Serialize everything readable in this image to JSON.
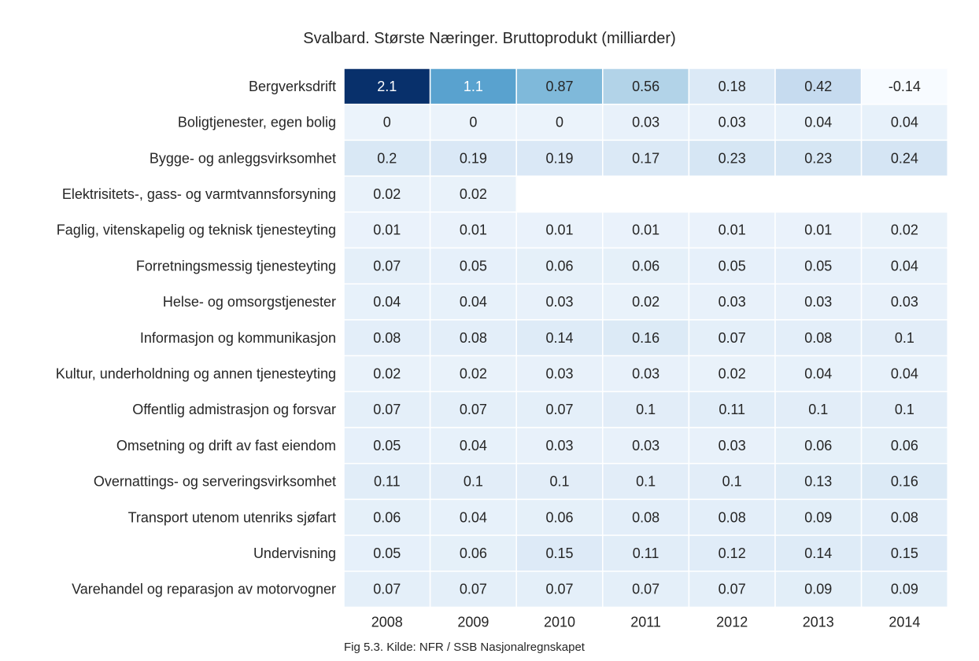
{
  "chart_data": {
    "type": "heatmap",
    "title": "Svalbard. Største Næringer. Bruttoprodukt (milliarder)",
    "caption": "Fig 5.3. Kilde: NFR / SSB Nasjonalregnskapet",
    "columns": [
      "2008",
      "2009",
      "2010",
      "2011",
      "2012",
      "2013",
      "2014"
    ],
    "rows": [
      "Bergverksdrift",
      "Boligtjenester, egen bolig",
      "Bygge- og anleggsvirksomhet",
      "Elektrisitets-, gass- og varmtvannsforsyning",
      "Faglig, vitenskapelig og teknisk tjenesteyting",
      "Forretningsmessig tjenesteyting",
      "Helse- og omsorgstjenester",
      "Informasjon og kommunikasjon",
      "Kultur, underholdning og annen tjenesteyting",
      "Offentlig admistrasjon og forsvar",
      "Omsetning og drift av fast eiendom",
      "Overnattings- og serveringsvirksomhet",
      "Transport utenom utenriks sjøfart",
      "Undervisning",
      "Varehandel og reparasjon av motorvogner"
    ],
    "values": [
      [
        "2.1",
        "1.1",
        "0.87",
        "0.56",
        "0.18",
        "0.42",
        "-0.14"
      ],
      [
        "0",
        "0",
        "0",
        "0.03",
        "0.03",
        "0.04",
        "0.04"
      ],
      [
        "0.2",
        "0.19",
        "0.19",
        "0.17",
        "0.23",
        "0.23",
        "0.24"
      ],
      [
        "0.02",
        "0.02",
        null,
        null,
        null,
        null,
        null
      ],
      [
        "0.01",
        "0.01",
        "0.01",
        "0.01",
        "0.01",
        "0.01",
        "0.02"
      ],
      [
        "0.07",
        "0.05",
        "0.06",
        "0.06",
        "0.05",
        "0.05",
        "0.04"
      ],
      [
        "0.04",
        "0.04",
        "0.03",
        "0.02",
        "0.03",
        "0.03",
        "0.03"
      ],
      [
        "0.08",
        "0.08",
        "0.14",
        "0.16",
        "0.07",
        "0.08",
        "0.1"
      ],
      [
        "0.02",
        "0.02",
        "0.03",
        "0.03",
        "0.02",
        "0.04",
        "0.04"
      ],
      [
        "0.07",
        "0.07",
        "0.07",
        "0.1",
        "0.11",
        "0.1",
        "0.1"
      ],
      [
        "0.05",
        "0.04",
        "0.03",
        "0.03",
        "0.03",
        "0.06",
        "0.06"
      ],
      [
        "0.11",
        "0.1",
        "0.1",
        "0.1",
        "0.1",
        "0.13",
        "0.16"
      ],
      [
        "0.06",
        "0.04",
        "0.06",
        "0.08",
        "0.08",
        "0.09",
        "0.08"
      ],
      [
        "0.05",
        "0.06",
        "0.15",
        "0.11",
        "0.12",
        "0.14",
        "0.15"
      ],
      [
        "0.07",
        "0.07",
        "0.07",
        "0.07",
        "0.07",
        "0.09",
        "0.09"
      ]
    ],
    "colormap": "Blues",
    "grid": false,
    "legend": "none"
  }
}
